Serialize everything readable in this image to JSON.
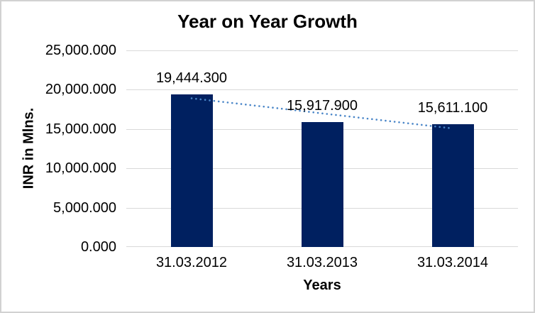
{
  "chart": {
    "title": "Year on Year Growth",
    "x_axis_title": "Years",
    "y_axis_title": "INR in Mlns."
  },
  "chart_data": {
    "type": "bar",
    "title": "Year on Year Growth",
    "xlabel": "Years",
    "ylabel": "INR in Mlns.",
    "categories": [
      "31.03.2012",
      "31.03.2013",
      "31.03.2014"
    ],
    "values": [
      19444.3,
      15917.9,
      15611.1
    ],
    "data_labels": [
      "19,444.300",
      "15,917.900",
      "15,611.100"
    ],
    "ylim": [
      0,
      25000
    ],
    "y_ticks": [
      {
        "value": 25000,
        "label": "25,000.000"
      },
      {
        "value": 20000,
        "label": "20,000.000"
      },
      {
        "value": 15000,
        "label": "15,000.000"
      },
      {
        "value": 10000,
        "label": "10,000.000"
      },
      {
        "value": 5000,
        "label": "5,000.000"
      },
      {
        "value": 0,
        "label": "0.000"
      }
    ],
    "grid": true,
    "legend": "none",
    "trendline": {
      "type": "linear",
      "style": "dotted"
    },
    "colors": {
      "bar": "#002060",
      "trendline": "#4a86c8",
      "gridline": "#d9d9d9",
      "text": "#000000",
      "frame_border": "#d1d1d1",
      "background": "#ffffff"
    }
  }
}
